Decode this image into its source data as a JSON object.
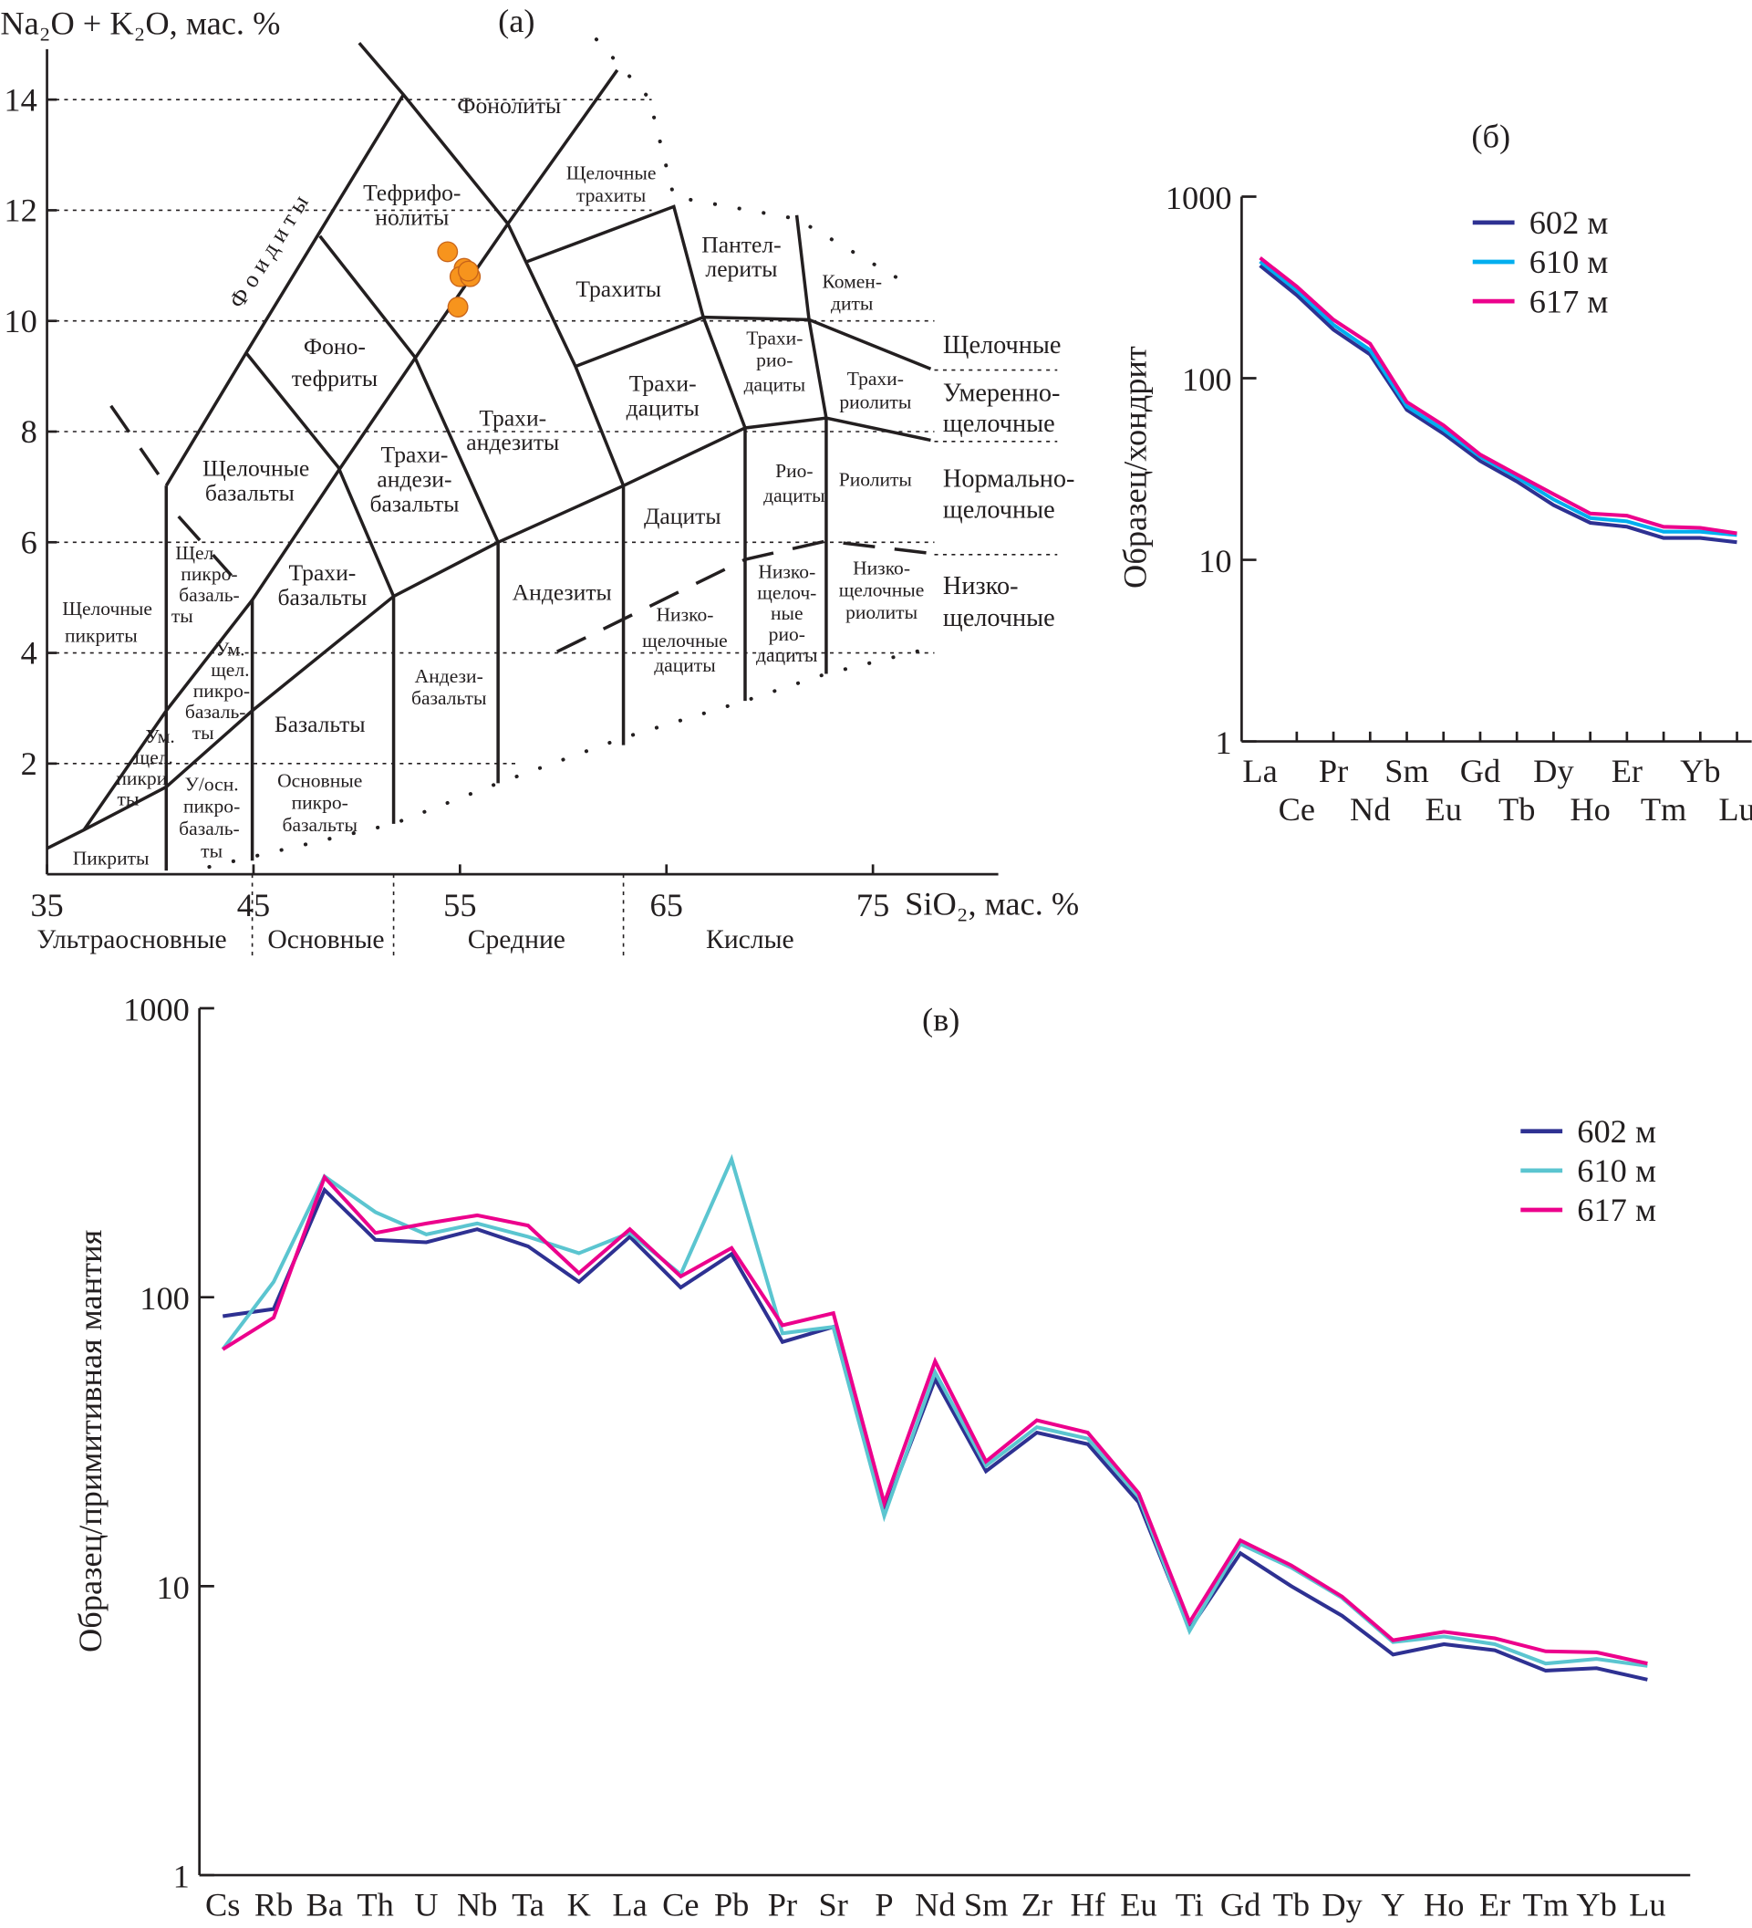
{
  "chart_data": [
    {
      "type": "scatter",
      "panel": "(а)",
      "xlabel": "SiO₂, мас. %",
      "ylabel": "Na₂O + K₂O, мас. %",
      "xlim": [
        35,
        81
      ],
      "ylim": [
        0,
        15
      ],
      "xticks": [
        "35",
        "45",
        "55",
        "65",
        "75"
      ],
      "yticks": [
        "2",
        "4",
        "6",
        "8",
        "10",
        "12",
        "14"
      ],
      "points_color": "#f7941d",
      "points": [
        {
          "x": 54.4,
          "y": 11.25
        },
        {
          "x": 55.2,
          "y": 10.95
        },
        {
          "x": 55.0,
          "y": 10.8
        },
        {
          "x": 55.5,
          "y": 10.8
        },
        {
          "x": 55.4,
          "y": 10.9
        },
        {
          "x": 54.9,
          "y": 10.25
        }
      ],
      "field_labels": [
        "Фонолиты",
        "Тефрифо-",
        "нолиты",
        "Щелочные",
        "трахиты",
        "Пантел-",
        "лериты",
        "Трахиты",
        "Комен-",
        "диты",
        "Фоно-",
        "тефриты",
        "Трахи-",
        "дациты",
        "Трахи-",
        "рио-",
        "дациты",
        "Трахи-",
        "риолиты",
        "Трахи-",
        "андезиты",
        "Щелочные",
        "базальты",
        "Трахи-",
        "андези-",
        "базальты",
        "Рио-",
        "дациты",
        "Риолиты",
        "Дациты",
        "Щел.",
        "пикро-",
        "базаль-",
        "ты",
        "Трахи-",
        "базальты",
        "Андезиты",
        "Низко-",
        "щелочные",
        "дациты",
        "Низко-",
        "щелоч-",
        "ные",
        "рио-",
        "дациты",
        "Низко-",
        "щелочные",
        "риолиты",
        "Щелочные",
        "пикриты",
        "Ум.",
        "щел.",
        "пикро-",
        "базаль-",
        "ты",
        "Андези-",
        "базальты",
        "Базальты",
        "Ум.",
        "щел.",
        "пикри",
        "ты",
        "У/осн.",
        "пикро-",
        "базаль-",
        "ты",
        "Основные",
        "пикро-",
        "базальты",
        "Пикриты",
        "Ф о и д и т ы"
      ],
      "series_labels": [
        "Щелочные",
        "Умеренно-",
        "щелочные",
        "Нормально-",
        "щелочные",
        "Низко-",
        "щелочные"
      ],
      "groups": [
        "Ультраосновные",
        "Основные",
        "Средние",
        "Кислые"
      ]
    },
    {
      "type": "line",
      "panel": "(б)",
      "ylabel": "Образец/хондрит",
      "yscale": "log",
      "ylim": [
        1,
        1000
      ],
      "yticks": [
        "1",
        "10",
        "100",
        "1000"
      ],
      "categories": [
        "La",
        "Ce",
        "Pr",
        "Nd",
        "Sm",
        "Eu",
        "Gd",
        "Tb",
        "Dy",
        "Ho",
        "Er",
        "Tm",
        "Yb",
        "Lu"
      ],
      "legend": "top-right",
      "series": [
        {
          "name": "602 м",
          "color": "#2e3192",
          "values": [
            417,
            287,
            185,
            135,
            67,
            49.5,
            35,
            27,
            20,
            16,
            15.2,
            13.2,
            13.2,
            12.5
          ]
        },
        {
          "name": "610 м",
          "color": "#00aeef",
          "values": [
            440,
            305,
            197,
            143,
            70,
            52,
            37,
            28.5,
            21.5,
            17,
            16.3,
            14.3,
            14.3,
            13.7
          ]
        },
        {
          "name": "617 м",
          "color": "#ec008c",
          "values": [
            460,
            320,
            210,
            155,
            74,
            55,
            38,
            29.5,
            23,
            18,
            17.5,
            15.2,
            15,
            14
          ]
        }
      ]
    },
    {
      "type": "line",
      "panel": "(в)",
      "ylabel": "Образец/примитивная мантия",
      "yscale": "log",
      "ylim": [
        1,
        1000
      ],
      "yticks": [
        "1",
        "10",
        "100",
        "1000"
      ],
      "categories": [
        "Cs",
        "Rb",
        "Ba",
        "Th",
        "U",
        "Nb",
        "Ta",
        "K",
        "La",
        "Ce",
        "Pb",
        "Pr",
        "Sr",
        "P",
        "Nd",
        "Sm",
        "Zr",
        "Hf",
        "Eu",
        "Ti",
        "Gd",
        "Tb",
        "Dy",
        "Y",
        "Ho",
        "Er",
        "Tm",
        "Yb",
        "Lu"
      ],
      "legend": "top-right",
      "series": [
        {
          "name": "602 м",
          "color": "#2e3192",
          "values": [
            86,
            91,
            235,
            158,
            155,
            172,
            150,
            113,
            162,
            108,
            141,
            70,
            79,
            18,
            52,
            25,
            34,
            31,
            19.5,
            7.1,
            13,
            10,
            7.9,
            5.8,
            6.3,
            6.0,
            5.1,
            5.2,
            4.75
          ]
        },
        {
          "name": "610 м",
          "color": "#5bc5d0",
          "values": [
            66,
            113,
            262,
            197,
            165,
            180,
            162,
            142,
            167,
            120,
            300,
            75,
            79,
            17.5,
            55,
            26.1,
            35.5,
            32.4,
            20.4,
            7.0,
            14,
            11.6,
            9.1,
            6.4,
            6.7,
            6.3,
            5.4,
            5.6,
            5.3
          ]
        },
        {
          "name": "617 м",
          "color": "#ec008c",
          "values": [
            66,
            85,
            260,
            167,
            180,
            192,
            177,
            121,
            172,
            118,
            148,
            80,
            88,
            19.4,
            60,
            27,
            37.5,
            34,
            21,
            7.5,
            14.4,
            11.8,
            9.2,
            6.5,
            6.95,
            6.6,
            5.95,
            5.9,
            5.4
          ]
        }
      ]
    }
  ]
}
